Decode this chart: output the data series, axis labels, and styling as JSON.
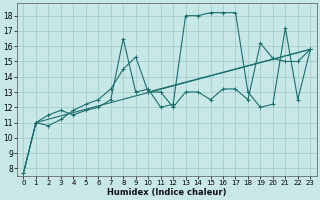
{
  "xlabel": "Humidex (Indice chaleur)",
  "xlim": [
    -0.5,
    23.5
  ],
  "ylim": [
    7.5,
    18.8
  ],
  "yticks": [
    8,
    9,
    10,
    11,
    12,
    13,
    14,
    15,
    16,
    17,
    18
  ],
  "xticks": [
    0,
    1,
    2,
    3,
    4,
    5,
    6,
    7,
    8,
    9,
    10,
    11,
    12,
    13,
    14,
    15,
    16,
    17,
    18,
    19,
    20,
    21,
    22,
    23
  ],
  "bg_color": "#c8e8e8",
  "grid_color": "#a0c8c8",
  "line_color": "#1a6e6e",
  "line1_x": [
    0,
    1,
    2,
    3,
    4,
    5,
    6,
    7,
    8,
    9,
    10,
    11,
    12,
    13,
    14,
    15,
    16,
    17,
    18,
    19,
    20,
    21,
    22,
    23
  ],
  "line1_y": [
    7.7,
    11.0,
    10.8,
    11.2,
    11.8,
    12.2,
    12.5,
    13.2,
    14.5,
    15.3,
    13.0,
    13.0,
    12.0,
    13.0,
    13.0,
    12.5,
    13.2,
    13.2,
    12.5,
    16.2,
    15.2,
    15.0,
    15.0,
    15.8
  ],
  "line2_x": [
    0,
    1,
    2,
    3,
    4,
    5,
    6,
    7,
    8,
    9,
    10,
    11,
    12,
    13,
    14,
    15,
    16,
    17,
    18,
    19,
    20,
    21,
    22,
    23
  ],
  "line2_y": [
    7.7,
    11.0,
    11.5,
    11.8,
    11.5,
    11.8,
    12.0,
    12.5,
    16.5,
    13.0,
    13.2,
    12.0,
    12.2,
    18.0,
    18.0,
    18.2,
    18.2,
    18.2,
    13.0,
    12.0,
    12.2,
    17.2,
    12.5,
    15.8
  ],
  "line3_x": [
    0,
    1,
    23
  ],
  "line3_y": [
    7.7,
    11.0,
    15.8
  ],
  "line4_x": [
    10,
    23
  ],
  "line4_y": [
    13.0,
    15.8
  ],
  "marker_size": 2.5,
  "linewidth": 0.8,
  "tick_fontsize": 5.0,
  "xlabel_fontsize": 6.0
}
